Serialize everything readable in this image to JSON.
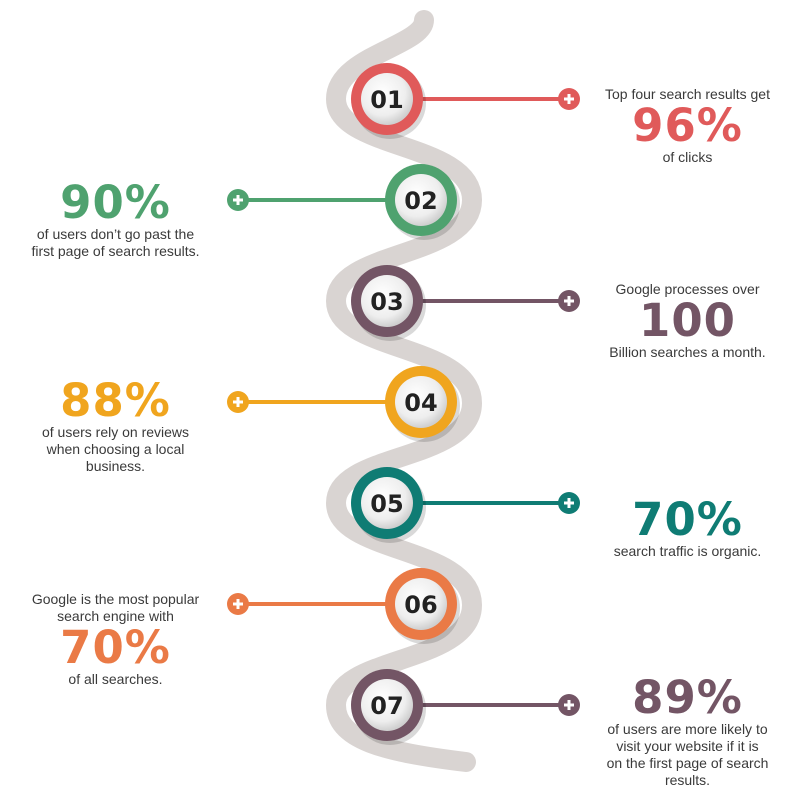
{
  "steps": [
    {
      "number": "01",
      "color": "#e05a5a",
      "side": "right",
      "lines_before": [
        "Top four search results get"
      ],
      "highlight": "96%",
      "lines_after": [
        "of clicks"
      ]
    },
    {
      "number": "02",
      "color": "#4fa26f",
      "side": "left",
      "lines_before": [],
      "highlight": "90%",
      "lines_after": [
        "of users don’t go past the",
        "first page of search results."
      ]
    },
    {
      "number": "03",
      "color": "#735565",
      "side": "right",
      "lines_before": [
        "Google processes over"
      ],
      "highlight": "100",
      "lines_after": [
        "Billion searches a month."
      ]
    },
    {
      "number": "04",
      "color": "#f0a51e",
      "side": "left",
      "lines_before": [],
      "highlight": "88%",
      "lines_after": [
        "of users rely on reviews",
        "when choosing a local",
        "business."
      ]
    },
    {
      "number": "05",
      "color": "#0f7c74",
      "side": "right",
      "lines_before": [],
      "highlight": "70%",
      "lines_after": [
        "search traffic is organic."
      ]
    },
    {
      "number": "06",
      "color": "#ea7a46",
      "side": "left",
      "lines_before": [
        "Google is the most popular",
        "search engine with"
      ],
      "highlight": "70%",
      "lines_after": [
        "of all searches."
      ]
    },
    {
      "number": "07",
      "color": "#735565",
      "side": "right",
      "lines_before": [],
      "highlight": "89%",
      "lines_after": [
        "of users are more likely to",
        "visit your website if it is",
        "on the first page of search",
        "results."
      ]
    }
  ],
  "colors": {
    "path": "#d9d4d2",
    "badge_face": "#f2f2f2",
    "badge_text": "#222222"
  },
  "icons": {
    "connector_end": "plus-icon"
  }
}
